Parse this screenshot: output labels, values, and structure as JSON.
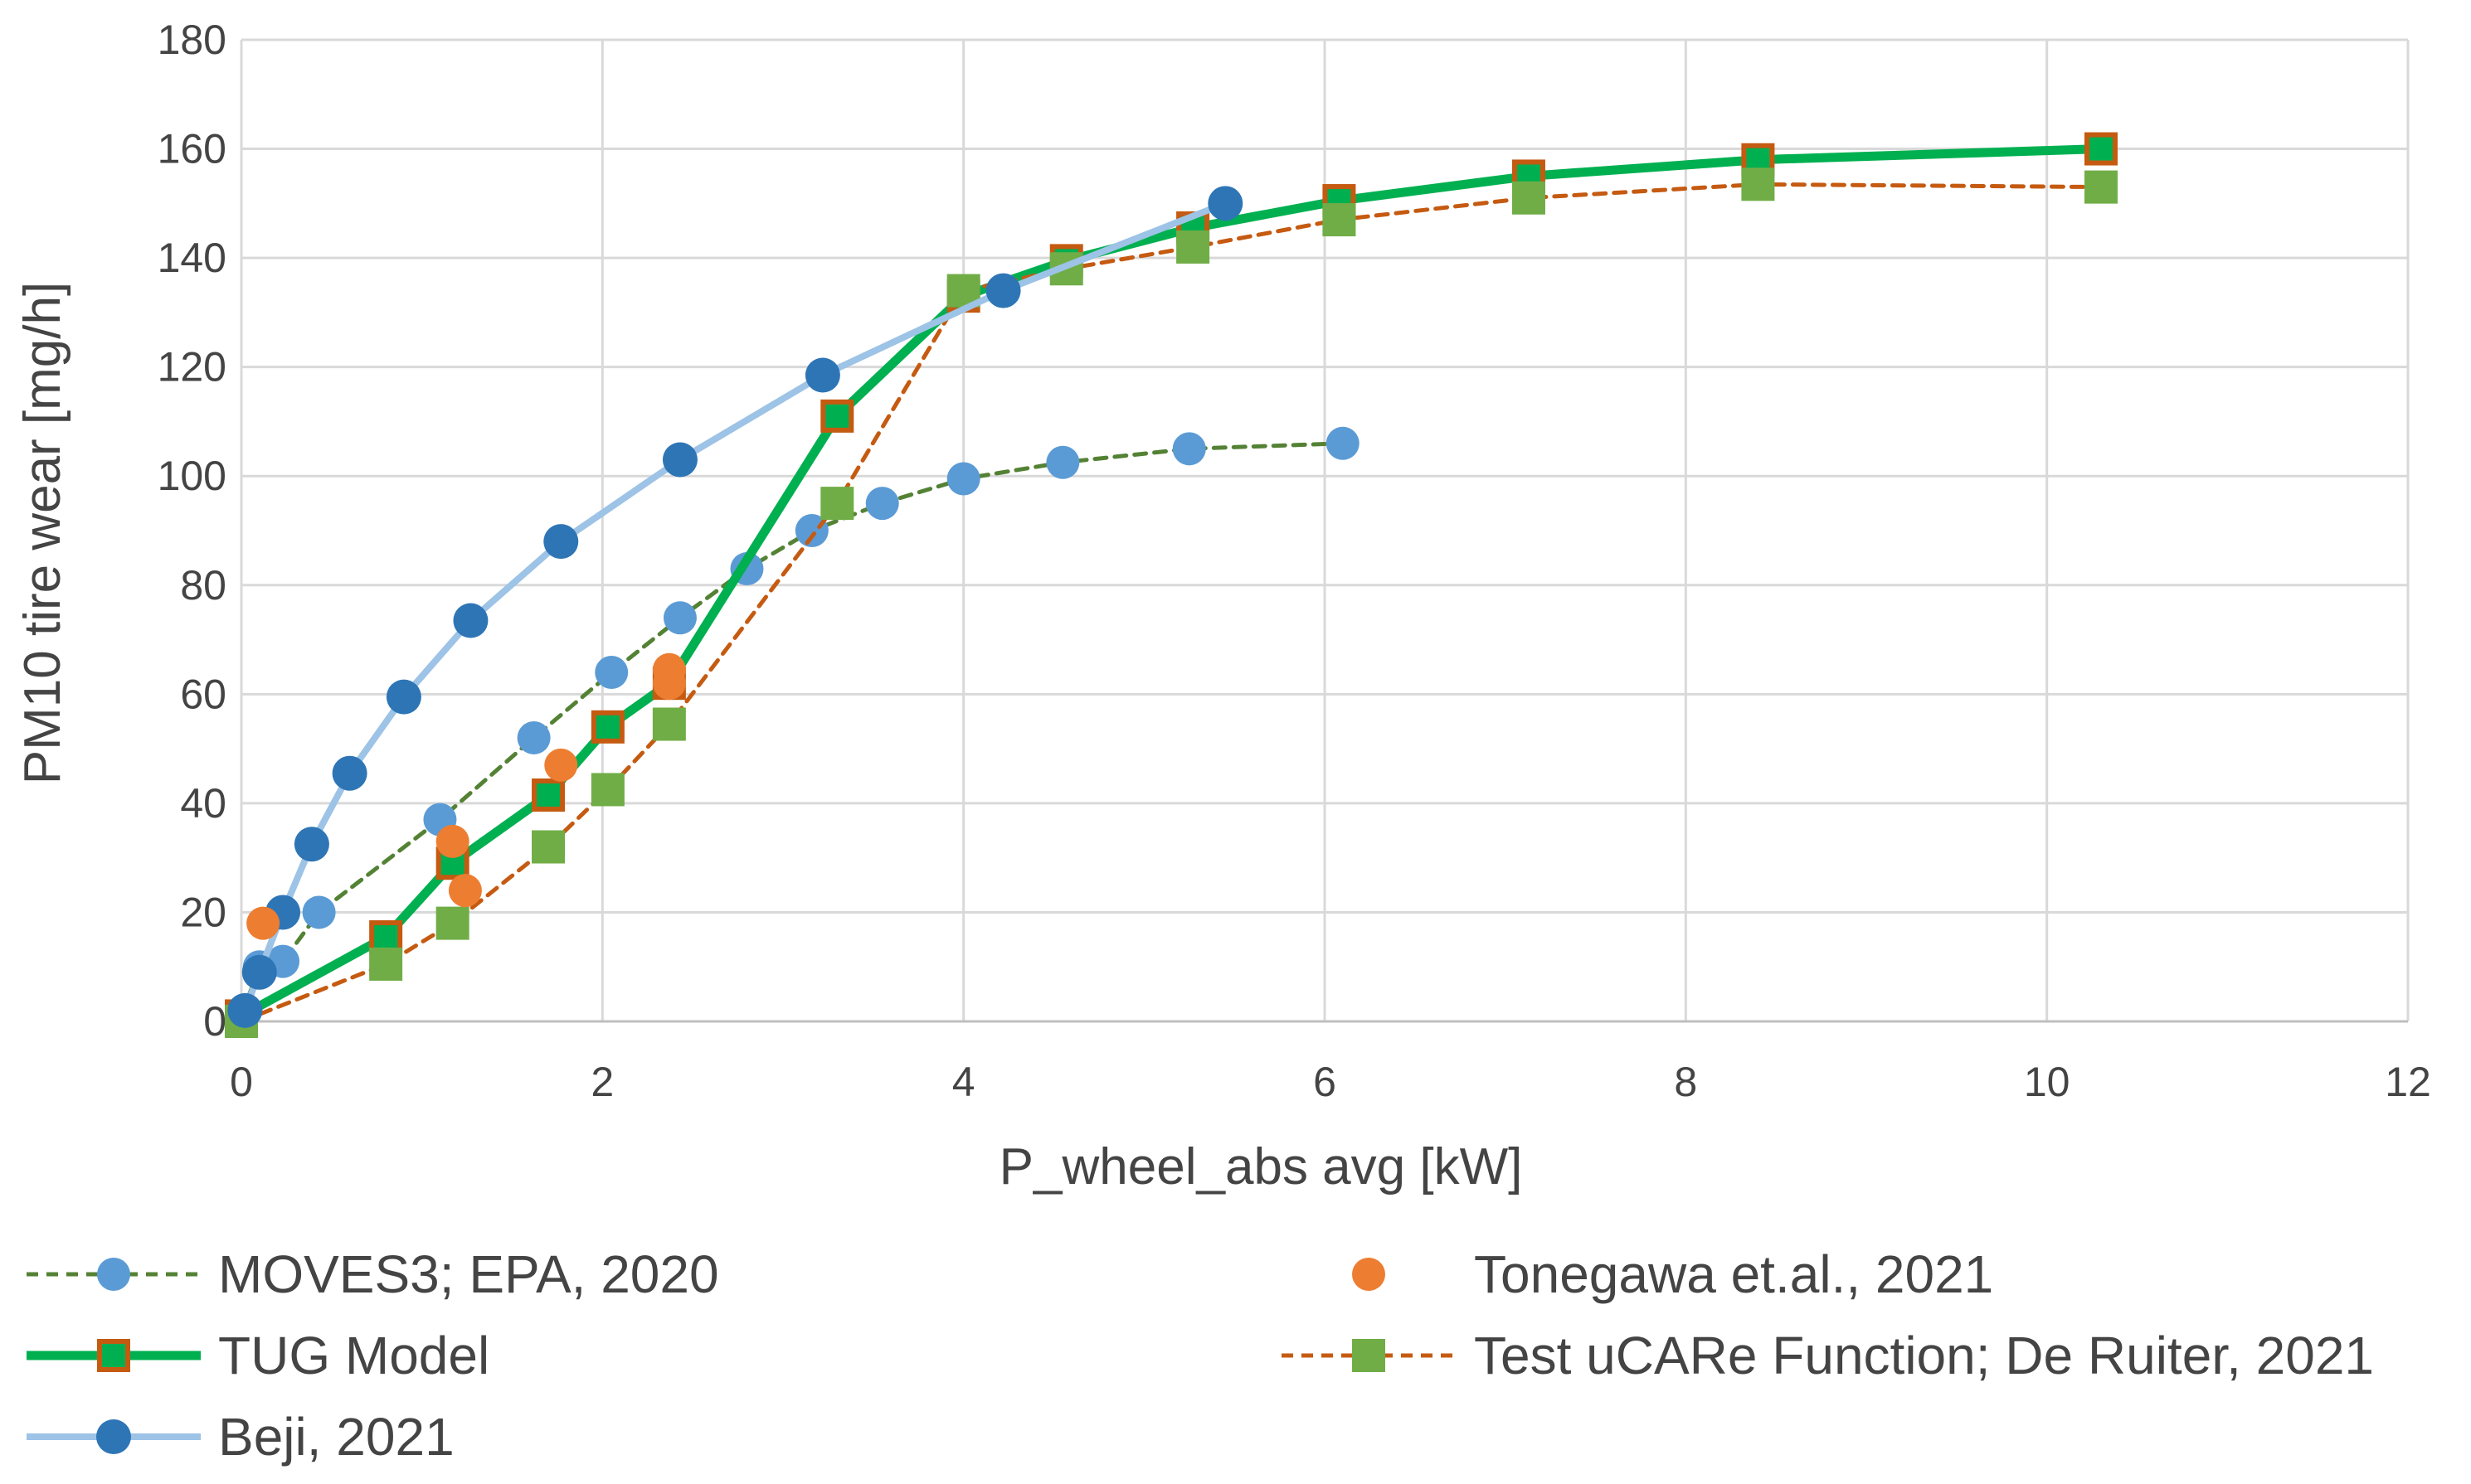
{
  "chart_data": {
    "type": "scatter",
    "title": "",
    "xlabel": "P_wheel_abs avg [kW]",
    "ylabel": "PM10 tire wear [mg/h]",
    "xlim": [
      0,
      12
    ],
    "ylim": [
      0,
      180
    ],
    "xticks": [
      "0",
      "2",
      "4",
      "6",
      "8",
      "10",
      "12"
    ],
    "yticks": [
      "0",
      "20",
      "40",
      "60",
      "80",
      "100",
      "120",
      "140",
      "160",
      "180"
    ],
    "grid": true,
    "legend_position": "bottom",
    "series": [
      {
        "name": "MOVES3; EPA, 2020",
        "style": "dashed-line-circle-markers",
        "line_color": "#548235",
        "marker_color": "#5b9bd5",
        "x": [
          0,
          0.1,
          0.23,
          0.43,
          1.1,
          1.62,
          2.05,
          2.43,
          2.8,
          3.16,
          3.55,
          4.0,
          4.55,
          5.25,
          6.1
        ],
        "y": [
          1,
          10,
          11,
          20,
          37,
          52,
          64,
          74,
          83,
          90,
          95,
          99.5,
          102.5,
          105,
          106
        ]
      },
      {
        "name": "Tonegawa et.al., 2021",
        "style": "circle-markers-only",
        "marker_color": "#ed7d31",
        "x": [
          0.12,
          1.17,
          1.24,
          1.77,
          2.37,
          2.37
        ],
        "y": [
          18,
          33,
          24,
          47,
          62,
          64.5
        ]
      },
      {
        "name": "TUG Model",
        "style": "solid-thick-line-square-markers",
        "line_color": "#00b050",
        "marker_fill": "#00b050",
        "marker_edge": "#c55a11",
        "x": [
          0,
          0.8,
          1.17,
          1.7,
          2.03,
          2.37,
          3.3,
          4.0,
          4.57,
          5.27,
          6.08,
          7.13,
          8.4,
          10.3
        ],
        "y": [
          1,
          15.5,
          29,
          41.5,
          54,
          62,
          111,
          133,
          139.5,
          145.5,
          150.5,
          155,
          158,
          160
        ]
      },
      {
        "name": "Test uCARe Function; De Ruiter, 2021",
        "style": "dashed-line-square-markers",
        "line_color": "#c55a11",
        "marker_color": "#70ad47",
        "x": [
          0,
          0.8,
          1.17,
          1.7,
          2.03,
          2.37,
          3.3,
          4.0,
          4.57,
          5.27,
          6.08,
          7.13,
          8.4,
          10.3
        ],
        "y": [
          0,
          10.5,
          18,
          32,
          42.5,
          54.5,
          95,
          134,
          138,
          142,
          147,
          151,
          153.5,
          153
        ]
      },
      {
        "name": "Beji, 2021",
        "style": "solid-line-circle-markers",
        "line_color": "#9dc3e6",
        "marker_color": "#2e75b6",
        "x": [
          0.02,
          0.1,
          0.23,
          0.39,
          0.6,
          0.9,
          1.27,
          1.77,
          2.43,
          3.22,
          4.22,
          5.45
        ],
        "y": [
          2,
          9,
          20,
          32.5,
          45.5,
          59.5,
          73.5,
          88,
          103,
          118.5,
          134,
          150
        ]
      }
    ]
  }
}
